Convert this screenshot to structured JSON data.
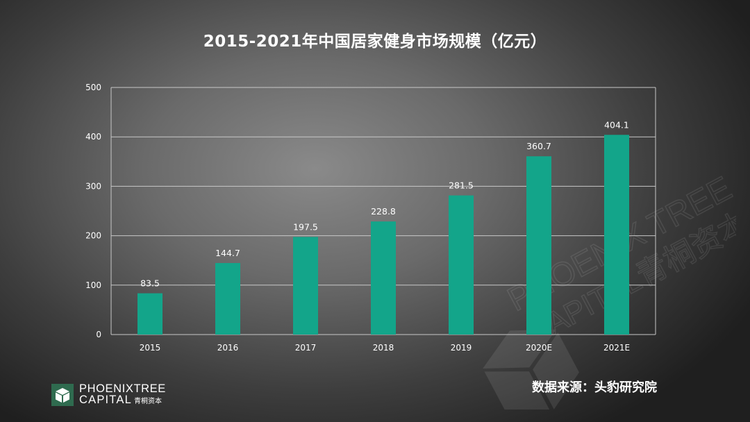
{
  "chart_data": {
    "type": "bar",
    "title": "2015-2021年中国居家健身市场规模（亿元）",
    "categories": [
      "2015",
      "2016",
      "2017",
      "2018",
      "2019",
      "2020E",
      "2021E"
    ],
    "values": [
      83.5,
      144.7,
      197.5,
      228.8,
      281.5,
      360.7,
      404.1
    ],
    "value_labels": [
      "83.5",
      "144.7",
      "197.5",
      "228.8",
      "281.5",
      "360.7",
      "404.1"
    ],
    "ylim": [
      0,
      500
    ],
    "yticks": [
      0,
      100,
      200,
      300,
      400,
      500
    ],
    "xlabel": "",
    "ylabel": "",
    "grid": true,
    "legend": "none",
    "bar_color": "#13a58a"
  },
  "footer": {
    "source": "数据来源：头豹研究院"
  },
  "branding": {
    "logo_name": "phoenixtree-capital-logo",
    "logo_line1": "PHOENIXTREE",
    "logo_line2": "CAPITAL",
    "logo_cn": "青桐资本",
    "watermark_line1": "PHOENIX TREE",
    "watermark_line2": "CAPITAL青桐资本"
  },
  "colors": {
    "accent": "#13a58a",
    "gridline": "#c8c8c8",
    "text": "#ffffff"
  }
}
